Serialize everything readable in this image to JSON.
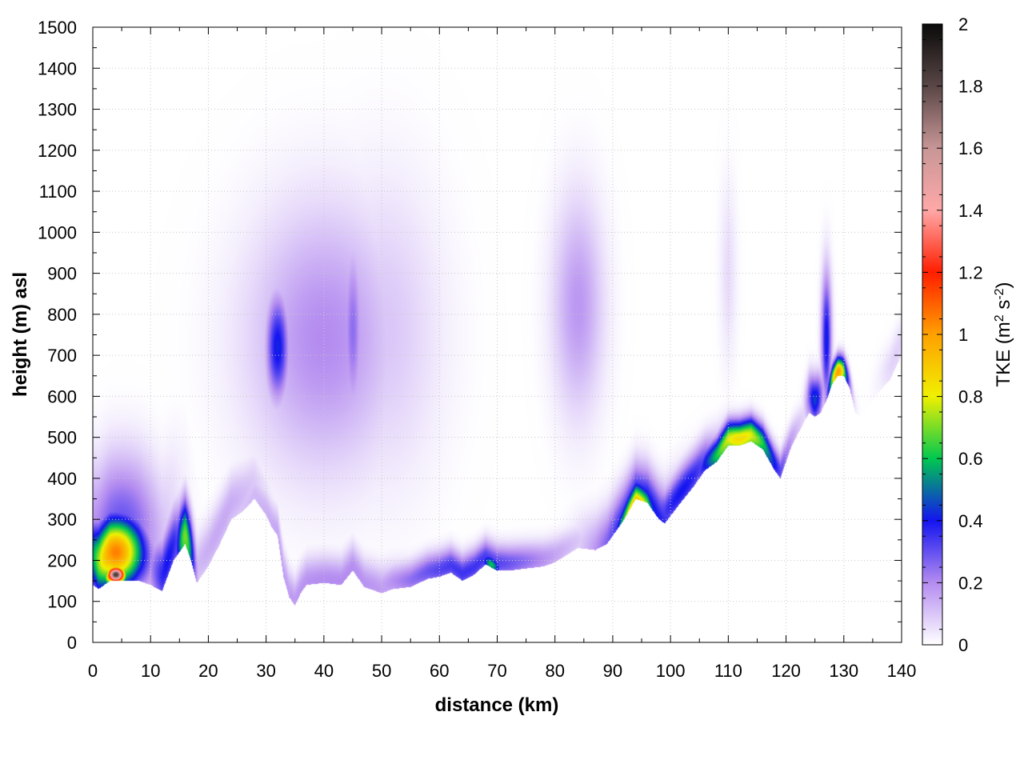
{
  "chart_data": {
    "type": "heatmap",
    "xlabel": "distance (km)",
    "ylabel": "height (m) asl",
    "colorbar_label": "TKE (m",
    "colorbar_label_sup1": "2",
    "colorbar_label_mid": " s",
    "colorbar_label_sup2": "-2",
    "colorbar_label_end": ")",
    "xlim": [
      0,
      140
    ],
    "ylim": [
      0,
      1500
    ],
    "clim": [
      0,
      2
    ],
    "x_ticks": [
      "0",
      "10",
      "20",
      "30",
      "40",
      "50",
      "60",
      "70",
      "80",
      "90",
      "100",
      "110",
      "120",
      "130",
      "140"
    ],
    "y_ticks": [
      "0",
      "100",
      "200",
      "300",
      "400",
      "500",
      "600",
      "700",
      "800",
      "900",
      "1000",
      "1100",
      "1200",
      "1300",
      "1400",
      "1500"
    ],
    "cbar_ticks": [
      "0",
      "0.2",
      "0.4",
      "0.6",
      "0.8",
      "1",
      "1.2",
      "1.4",
      "1.6",
      "1.8",
      "2"
    ],
    "grid": true,
    "colormap": [
      {
        "v": 0.0,
        "color": "#ffffff"
      },
      {
        "v": 0.2,
        "color": "#b48cf0"
      },
      {
        "v": 0.4,
        "color": "#1414f0"
      },
      {
        "v": 0.6,
        "color": "#00c850"
      },
      {
        "v": 0.8,
        "color": "#f0f000"
      },
      {
        "v": 1.0,
        "color": "#ffa000"
      },
      {
        "v": 1.2,
        "color": "#ff1e00"
      },
      {
        "v": 1.4,
        "color": "#ffa8a8"
      },
      {
        "v": 1.6,
        "color": "#c89696"
      },
      {
        "v": 1.8,
        "color": "#5a4646"
      },
      {
        "v": 2.0,
        "color": "#0a0a0a"
      }
    ],
    "terrain": [
      [
        0,
        140
      ],
      [
        1,
        130
      ],
      [
        2,
        140
      ],
      [
        3,
        150
      ],
      [
        5,
        150
      ],
      [
        8,
        150
      ],
      [
        10,
        140
      ],
      [
        12,
        125
      ],
      [
        14,
        200
      ],
      [
        16,
        240
      ],
      [
        17,
        200
      ],
      [
        18,
        145
      ],
      [
        20,
        185
      ],
      [
        22,
        240
      ],
      [
        24,
        300
      ],
      [
        26,
        320
      ],
      [
        28,
        350
      ],
      [
        30,
        310
      ],
      [
        31,
        280
      ],
      [
        32,
        260
      ],
      [
        33,
        160
      ],
      [
        34,
        110
      ],
      [
        35,
        90
      ],
      [
        36,
        120
      ],
      [
        37,
        140
      ],
      [
        40,
        145
      ],
      [
        43,
        140
      ],
      [
        45,
        175
      ],
      [
        47,
        135
      ],
      [
        50,
        120
      ],
      [
        52,
        130
      ],
      [
        55,
        135
      ],
      [
        58,
        155
      ],
      [
        60,
        160
      ],
      [
        62,
        170
      ],
      [
        64,
        150
      ],
      [
        66,
        165
      ],
      [
        68,
        190
      ],
      [
        70,
        175
      ],
      [
        72,
        175
      ],
      [
        75,
        180
      ],
      [
        78,
        185
      ],
      [
        80,
        195
      ],
      [
        84,
        230
      ],
      [
        87,
        225
      ],
      [
        89,
        240
      ],
      [
        92,
        300
      ],
      [
        94,
        350
      ],
      [
        96,
        340
      ],
      [
        98,
        300
      ],
      [
        99,
        290
      ],
      [
        102,
        345
      ],
      [
        104,
        380
      ],
      [
        106,
        420
      ],
      [
        108,
        440
      ],
      [
        110,
        480
      ],
      [
        112,
        480
      ],
      [
        114,
        490
      ],
      [
        116,
        470
      ],
      [
        118,
        420
      ],
      [
        119,
        400
      ],
      [
        121,
        480
      ],
      [
        124,
        560
      ],
      [
        125,
        550
      ],
      [
        126,
        560
      ],
      [
        127,
        590
      ],
      [
        128,
        630
      ],
      [
        129,
        650
      ],
      [
        130,
        650
      ],
      [
        131,
        620
      ],
      [
        132,
        560
      ],
      [
        133,
        550
      ],
      [
        134,
        570
      ],
      [
        136,
        610
      ],
      [
        138,
        640
      ],
      [
        140,
        700
      ]
    ],
    "tke_blobs": [
      {
        "x": 4,
        "z": 220,
        "sx": 3.5,
        "sz": 60,
        "v": 1.05,
        "surface": true
      },
      {
        "x": 4,
        "z": 165,
        "sx": 1.2,
        "sz": 15,
        "v": 1.85,
        "surface": true
      },
      {
        "x": 5,
        "z": 280,
        "sx": 5,
        "sz": 120,
        "v": 0.3,
        "surface": true
      },
      {
        "x": 16,
        "z": 260,
        "sx": 1.2,
        "sz": 60,
        "v": 0.7,
        "surface": true
      },
      {
        "x": 13,
        "z": 200,
        "sx": 2.5,
        "sz": 60,
        "v": 0.4,
        "surface": true
      },
      {
        "x": 22,
        "z": 280,
        "sx": 6,
        "sz": 50,
        "v": 0.15,
        "surface": true
      },
      {
        "x": 32,
        "z": 720,
        "sx": 1.4,
        "sz": 90,
        "v": 0.42
      },
      {
        "x": 40,
        "z": 740,
        "sx": 9,
        "sz": 220,
        "v": 0.2
      },
      {
        "x": 45,
        "z": 760,
        "sx": 1.2,
        "sz": 150,
        "v": 0.25
      },
      {
        "x": 50,
        "z": 760,
        "sx": 7,
        "sz": 250,
        "v": 0.1
      },
      {
        "x": 42,
        "z": 150,
        "sx": 14,
        "sz": 40,
        "v": 0.2,
        "surface": true
      },
      {
        "x": 65,
        "z": 175,
        "sx": 12,
        "sz": 30,
        "v": 0.35,
        "surface": true
      },
      {
        "x": 69,
        "z": 190,
        "sx": 1.2,
        "sz": 15,
        "v": 0.6,
        "surface": true
      },
      {
        "x": 84,
        "z": 820,
        "sx": 3,
        "sz": 180,
        "v": 0.18
      },
      {
        "x": 94,
        "z": 330,
        "sx": 2.5,
        "sz": 40,
        "v": 1.05,
        "surface": true
      },
      {
        "x": 95,
        "z": 340,
        "sx": 6,
        "sz": 60,
        "v": 0.45,
        "surface": true
      },
      {
        "x": 102,
        "z": 370,
        "sx": 5,
        "sz": 40,
        "v": 0.4,
        "surface": true
      },
      {
        "x": 112,
        "z": 495,
        "sx": 5,
        "sz": 30,
        "v": 0.85,
        "surface": true
      },
      {
        "x": 110,
        "z": 900,
        "sx": 1,
        "sz": 150,
        "v": 0.06
      },
      {
        "x": 127,
        "z": 740,
        "sx": 0.6,
        "sz": 110,
        "v": 0.42
      },
      {
        "x": 125,
        "z": 590,
        "sx": 1,
        "sz": 40,
        "v": 0.45,
        "surface": true
      },
      {
        "x": 129,
        "z": 660,
        "sx": 1.2,
        "sz": 25,
        "v": 1.0,
        "surface": true
      },
      {
        "x": 139,
        "z": 700,
        "sx": 2,
        "sz": 40,
        "v": 0.08,
        "surface": true
      }
    ]
  }
}
